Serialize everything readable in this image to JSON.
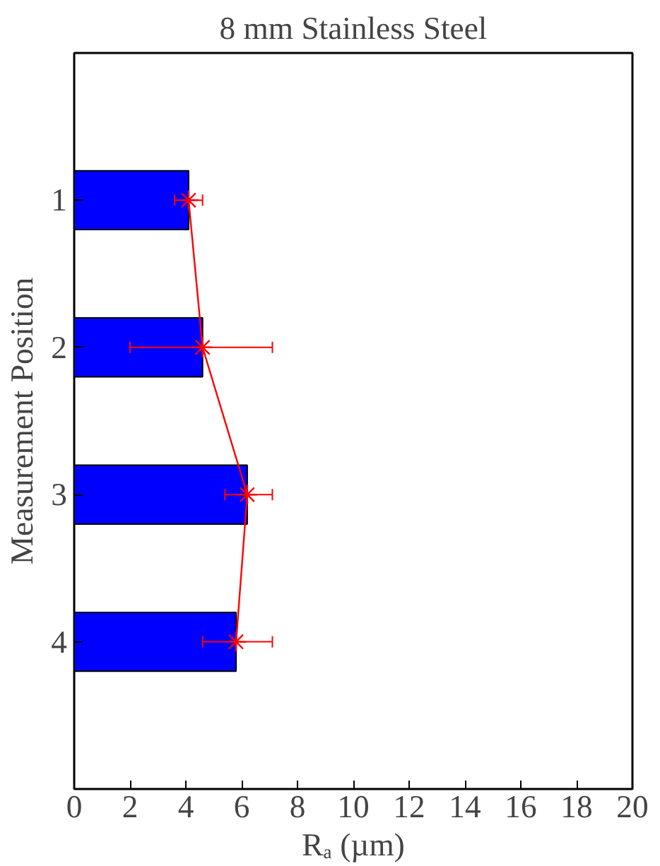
{
  "chart_data": {
    "type": "bar",
    "orientation": "horizontal",
    "title": "8 mm Stainless Steel",
    "xlabel": "Rₐ (µm)",
    "ylabel": "Measurement Position",
    "categories": [
      "1",
      "2",
      "3",
      "4"
    ],
    "xlim": [
      0,
      20
    ],
    "xticks": [
      0,
      2,
      4,
      6,
      8,
      10,
      12,
      14,
      16,
      18,
      20
    ],
    "grid": false,
    "series": [
      {
        "color": "#0000ff",
        "values": [
          4.1,
          4.6,
          6.2,
          5.8
        ]
      },
      {
        "type": "line",
        "color": "#ff0000",
        "marker": "cross",
        "values": [
          4.1,
          4.6,
          6.2,
          5.8
        ],
        "errors": [
          [
            3.6,
            4.6
          ],
          [
            2.0,
            7.1
          ],
          [
            5.4,
            7.1
          ],
          [
            4.6,
            7.1
          ]
        ]
      }
    ]
  }
}
